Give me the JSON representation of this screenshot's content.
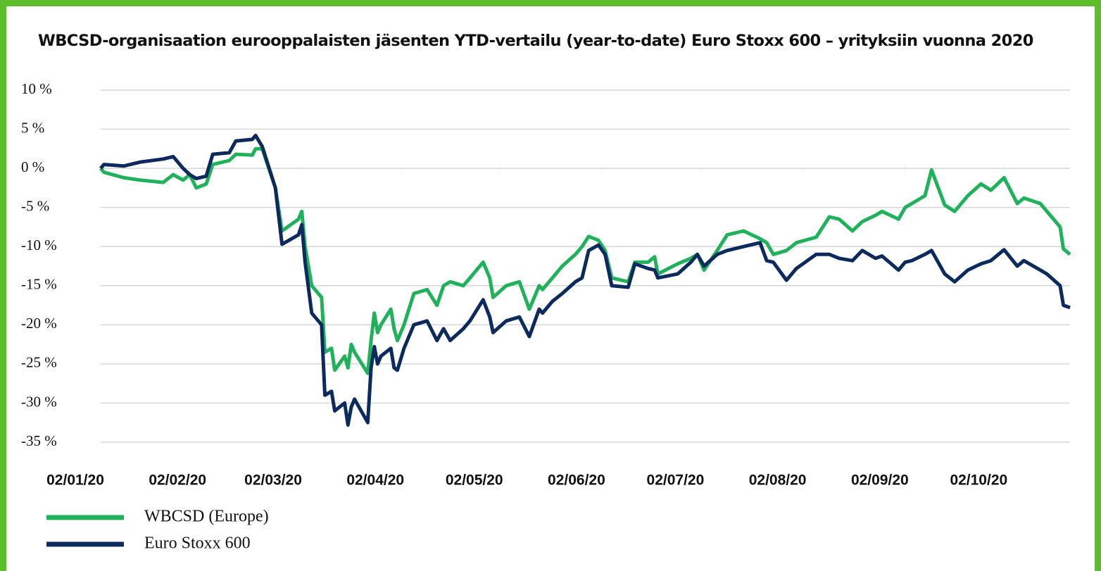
{
  "chart_data": {
    "type": "line",
    "title": "WBCSD-organisaation eurooppalaisten jäsenten YTD-vertailu (year-to-date) Euro Stoxx 600 – yrityksiin vuonna 2020",
    "x": [
      "2020-01-02",
      "2020-01-03",
      "2020-01-09",
      "2020-01-14",
      "2020-01-21",
      "2020-01-24",
      "2020-01-27",
      "2020-01-29",
      "2020-01-31",
      "2020-02-03",
      "2020-02-05",
      "2020-02-10",
      "2020-02-12",
      "2020-02-17",
      "2020-02-18",
      "2020-02-20",
      "2020-02-24",
      "2020-02-26",
      "2020-03-02",
      "2020-03-03",
      "2020-03-04",
      "2020-03-06",
      "2020-03-09",
      "2020-03-10",
      "2020-03-12",
      "2020-03-13",
      "2020-03-16",
      "2020-03-17",
      "2020-03-18",
      "2020-03-19",
      "2020-03-23",
      "2020-03-24",
      "2020-03-25",
      "2020-03-26",
      "2020-03-27",
      "2020-03-30",
      "2020-03-31",
      "2020-04-01",
      "2020-04-03",
      "2020-04-06",
      "2020-04-10",
      "2020-04-13",
      "2020-04-15",
      "2020-04-17",
      "2020-04-21",
      "2020-04-23",
      "2020-04-27",
      "2020-04-29",
      "2020-04-30",
      "2020-05-04",
      "2020-05-08",
      "2020-05-11",
      "2020-05-14",
      "2020-05-15",
      "2020-05-18",
      "2020-05-21",
      "2020-05-25",
      "2020-05-27",
      "2020-05-29",
      "2020-06-01",
      "2020-06-03",
      "2020-06-05",
      "2020-06-10",
      "2020-06-12",
      "2020-06-16",
      "2020-06-18",
      "2020-06-19",
      "2020-06-25",
      "2020-06-29",
      "2020-07-01",
      "2020-07-03",
      "2020-07-07",
      "2020-07-10",
      "2020-07-15",
      "2020-07-20",
      "2020-07-22",
      "2020-07-24",
      "2020-07-28",
      "2020-07-31",
      "2020-08-06",
      "2020-08-10",
      "2020-08-13",
      "2020-08-17",
      "2020-08-20",
      "2020-08-24",
      "2020-08-26",
      "2020-08-31",
      "2020-09-02",
      "2020-09-04",
      "2020-09-08",
      "2020-09-10",
      "2020-09-14",
      "2020-09-17",
      "2020-09-21",
      "2020-09-25",
      "2020-09-28",
      "2020-10-02",
      "2020-10-06",
      "2020-10-08",
      "2020-10-13",
      "2020-10-15",
      "2020-10-19",
      "2020-10-20",
      "2020-10-22"
    ],
    "series": [
      {
        "name": "WBCSD (Europe)",
        "color": "#1fb25a",
        "values": [
          0,
          -0.5,
          -1.2,
          -1.5,
          -1.8,
          -0.8,
          -1.5,
          -0.8,
          -2.5,
          -2,
          0.5,
          1,
          1.8,
          1.7,
          2.5,
          2.5,
          -2.5,
          -8,
          -6.5,
          -5.5,
          -10,
          -15,
          -16.5,
          -23.5,
          -23,
          -25.8,
          -24,
          -25.5,
          -22.5,
          -23.5,
          -26.2,
          -22,
          -18.5,
          -21,
          -20,
          -18,
          -20.5,
          -22,
          -20,
          -16,
          -15.5,
          -17.5,
          -15,
          -14.5,
          -15,
          -14,
          -12,
          -14,
          -16.5,
          -15,
          -14.5,
          -18,
          -15,
          -15.5,
          -14,
          -12.5,
          -11,
          -10,
          -8.7,
          -9.2,
          -10.5,
          -14,
          -14.5,
          -12,
          -12,
          -11.3,
          -13.5,
          -12.2,
          -11.5,
          -11,
          -13,
          -10.5,
          -8.5,
          -8,
          -9,
          -9.5,
          -11,
          -10.5,
          -9.5,
          -8.8,
          -6.2,
          -6.5,
          -8,
          -6.8,
          -6,
          -5.5,
          -6.5,
          -5,
          -4.5,
          -3.5,
          -0.2,
          -4.7,
          -5.5,
          -3.5,
          -2,
          -2.8,
          -1.2,
          -4.5,
          -3.8,
          -4.5,
          -5.5,
          -7.5,
          -10.3,
          -11
        ]
      },
      {
        "name": "Euro Stoxx 600",
        "color": "#0c2a5e",
        "values": [
          0,
          0.5,
          0.3,
          0.8,
          1.2,
          1.5,
          0,
          -0.8,
          -1.3,
          -1,
          1.8,
          2,
          3.5,
          3.7,
          4.2,
          2.8,
          -2.5,
          -9.7,
          -8.5,
          -7.2,
          -12,
          -18.5,
          -20,
          -29,
          -28.5,
          -31,
          -30,
          -32.8,
          -30.5,
          -29.5,
          -32.5,
          -25.5,
          -22.8,
          -25,
          -24,
          -23,
          -25.5,
          -25.8,
          -23,
          -20,
          -19.5,
          -22,
          -20.5,
          -22,
          -20.5,
          -19.5,
          -16.8,
          -19,
          -21,
          -19.5,
          -19,
          -21.5,
          -18,
          -18.5,
          -17,
          -16,
          -14.5,
          -14,
          -10.5,
          -9.8,
          -11,
          -15,
          -15.2,
          -12.2,
          -12.8,
          -13,
          -14,
          -13.5,
          -12,
          -11,
          -12.5,
          -11,
          -10.5,
          -10,
          -9.5,
          -11.8,
          -12,
          -14.3,
          -12.8,
          -11,
          -11,
          -11.5,
          -11.8,
          -10.5,
          -11.5,
          -11.2,
          -13,
          -12,
          -11.8,
          -11,
          -10.5,
          -13.5,
          -14.5,
          -13,
          -12.2,
          -11.8,
          -10.4,
          -12.5,
          -11.8,
          -13,
          -13.5,
          -15,
          -17.5,
          -17.8
        ]
      }
    ],
    "xlim": [
      "2020-01-02",
      "2020-10-22"
    ],
    "xticks": [
      {
        "value": "2020-01-02",
        "label": "02/01/20"
      },
      {
        "value": "2020-02-02",
        "label": "02/02/20"
      },
      {
        "value": "2020-03-02",
        "label": "02/03/20"
      },
      {
        "value": "2020-04-02",
        "label": "02/04/20"
      },
      {
        "value": "2020-05-02",
        "label": "02/05/20"
      },
      {
        "value": "2020-06-02",
        "label": "02/06/20"
      },
      {
        "value": "2020-07-02",
        "label": "02/07/20"
      },
      {
        "value": "2020-08-02",
        "label": "02/08/20"
      },
      {
        "value": "2020-09-02",
        "label": "02/09/20"
      },
      {
        "value": "2020-10-02",
        "label": "02/10/20"
      }
    ],
    "ylim": [
      -35,
      10
    ],
    "yticks": [
      {
        "value": 10,
        "label": "10 %"
      },
      {
        "value": 5,
        "label": "5 %"
      },
      {
        "value": 0,
        "label": "0 %"
      },
      {
        "value": -5,
        "label": "-5 %"
      },
      {
        "value": -10,
        "label": "-10 %"
      },
      {
        "value": -15,
        "label": "-15 %"
      },
      {
        "value": -20,
        "label": "-20 %"
      },
      {
        "value": -25,
        "label": "-25 %"
      },
      {
        "value": -30,
        "label": "-30 %"
      },
      {
        "value": -35,
        "label": "-35 %"
      }
    ],
    "grid": true
  }
}
